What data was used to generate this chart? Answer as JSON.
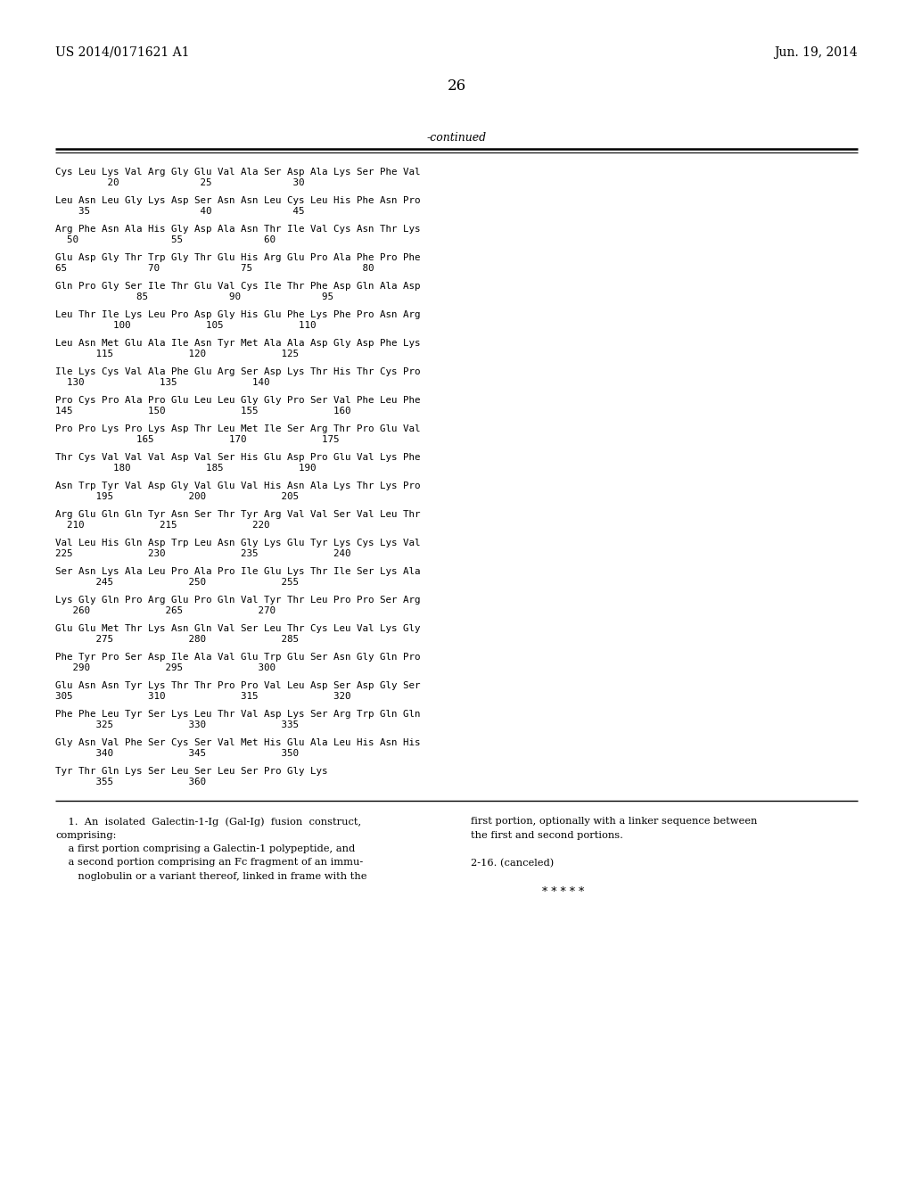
{
  "header_left": "US 2014/0171621 A1",
  "header_right": "Jun. 19, 2014",
  "page_number": "26",
  "continued_label": "-continued",
  "background_color": "#ffffff",
  "text_color": "#000000",
  "sequence_lines": [
    [
      "Cys Leu Lys Val Arg Gly Glu Val Ala Ser Asp Ala Lys Ser Phe Val",
      "         20              25              30"
    ],
    [
      "Leu Asn Leu Gly Lys Asp Ser Asn Asn Leu Cys Leu His Phe Asn Pro",
      "    35                   40              45"
    ],
    [
      "Arg Phe Asn Ala His Gly Asp Ala Asn Thr Ile Val Cys Asn Thr Lys",
      "  50                55              60"
    ],
    [
      "Glu Asp Gly Thr Trp Gly Thr Glu His Arg Glu Pro Ala Phe Pro Phe",
      "65              70              75                   80"
    ],
    [
      "Gln Pro Gly Ser Ile Thr Glu Val Cys Ile Thr Phe Asp Gln Ala Asp",
      "              85              90              95"
    ],
    [
      "Leu Thr Ile Lys Leu Pro Asp Gly His Glu Phe Lys Phe Pro Asn Arg",
      "          100             105             110"
    ],
    [
      "Leu Asn Met Glu Ala Ile Asn Tyr Met Ala Ala Asp Gly Asp Phe Lys",
      "       115             120             125"
    ],
    [
      "Ile Lys Cys Val Ala Phe Glu Arg Ser Asp Lys Thr His Thr Cys Pro",
      "  130             135             140"
    ],
    [
      "Pro Cys Pro Ala Pro Glu Leu Leu Gly Gly Pro Ser Val Phe Leu Phe",
      "145             150             155             160"
    ],
    [
      "Pro Pro Lys Pro Lys Asp Thr Leu Met Ile Ser Arg Thr Pro Glu Val",
      "              165             170             175"
    ],
    [
      "Thr Cys Val Val Val Asp Val Ser His Glu Asp Pro Glu Val Lys Phe",
      "          180             185             190"
    ],
    [
      "Asn Trp Tyr Val Asp Gly Val Glu Val His Asn Ala Lys Thr Lys Pro",
      "       195             200             205"
    ],
    [
      "Arg Glu Gln Gln Tyr Asn Ser Thr Tyr Arg Val Val Ser Val Leu Thr",
      "  210             215             220"
    ],
    [
      "Val Leu His Gln Asp Trp Leu Asn Gly Lys Glu Tyr Lys Cys Lys Val",
      "225             230             235             240"
    ],
    [
      "Ser Asn Lys Ala Leu Pro Ala Pro Ile Glu Lys Thr Ile Ser Lys Ala",
      "       245             250             255"
    ],
    [
      "Lys Gly Gln Pro Arg Glu Pro Gln Val Tyr Thr Leu Pro Pro Ser Arg",
      "   260             265             270"
    ],
    [
      "Glu Glu Met Thr Lys Asn Gln Val Ser Leu Thr Cys Leu Val Lys Gly",
      "       275             280             285"
    ],
    [
      "Phe Tyr Pro Ser Asp Ile Ala Val Glu Trp Glu Ser Asn Gly Gln Pro",
      "   290             295             300"
    ],
    [
      "Glu Asn Asn Tyr Lys Thr Thr Pro Pro Val Leu Asp Ser Asp Gly Ser",
      "305             310             315             320"
    ],
    [
      "Phe Phe Leu Tyr Ser Lys Leu Thr Val Asp Lys Ser Arg Trp Gln Gln",
      "       325             330             335"
    ],
    [
      "Gly Asn Val Phe Ser Cys Ser Val Met His Glu Ala Leu His Asn His",
      "       340             345             350"
    ],
    [
      "Tyr Thr Gln Lys Ser Leu Ser Leu Ser Pro Gly Lys",
      "       355             360"
    ]
  ],
  "claims_left": [
    "    1.  An  isolated  Galectin-1-Ig  (Gal-Ig)  fusion  construct,",
    "comprising:",
    "    a first portion comprising a Galectin-1 polypeptide, and",
    "    a second portion comprising an Fc fragment of an immu-",
    "       noglobulin or a variant thereof, linked in frame with the"
  ],
  "claims_right": [
    "first portion, optionally with a linker sequence between",
    "the first and second portions.",
    "",
    "2-16. (canceled)",
    "",
    "*  *  *  *  *"
  ]
}
